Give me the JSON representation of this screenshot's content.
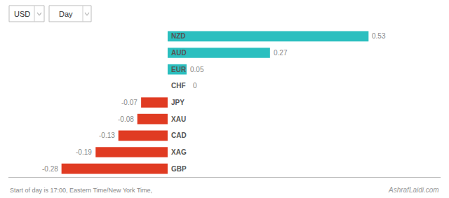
{
  "chart_data": {
    "type": "bar",
    "orientation": "horizontal",
    "categories": [
      "NZD",
      "AUD",
      "EUR",
      "CHF",
      "JPY",
      "XAU",
      "CAD",
      "XAG",
      "GBP"
    ],
    "values": [
      0.53,
      0.27,
      0.05,
      0,
      -0.07,
      -0.08,
      -0.13,
      -0.19,
      -0.28
    ],
    "colors": [
      "#2bbfbf",
      "#2bbfbf",
      "#2bbfbf",
      "#2bbfbf",
      "#e03b22",
      "#e03b22",
      "#e03b22",
      "#e03b22",
      "#e03b22"
    ],
    "data_labels": true,
    "xlim": [
      -0.42,
      0.72
    ],
    "tick_labels": false,
    "grid": false,
    "annotations": [
      "Start of day is 17:00, Eastern Time/New York Time,",
      "AshrafLaidi.com",
      "USD",
      "Day"
    ]
  }
}
